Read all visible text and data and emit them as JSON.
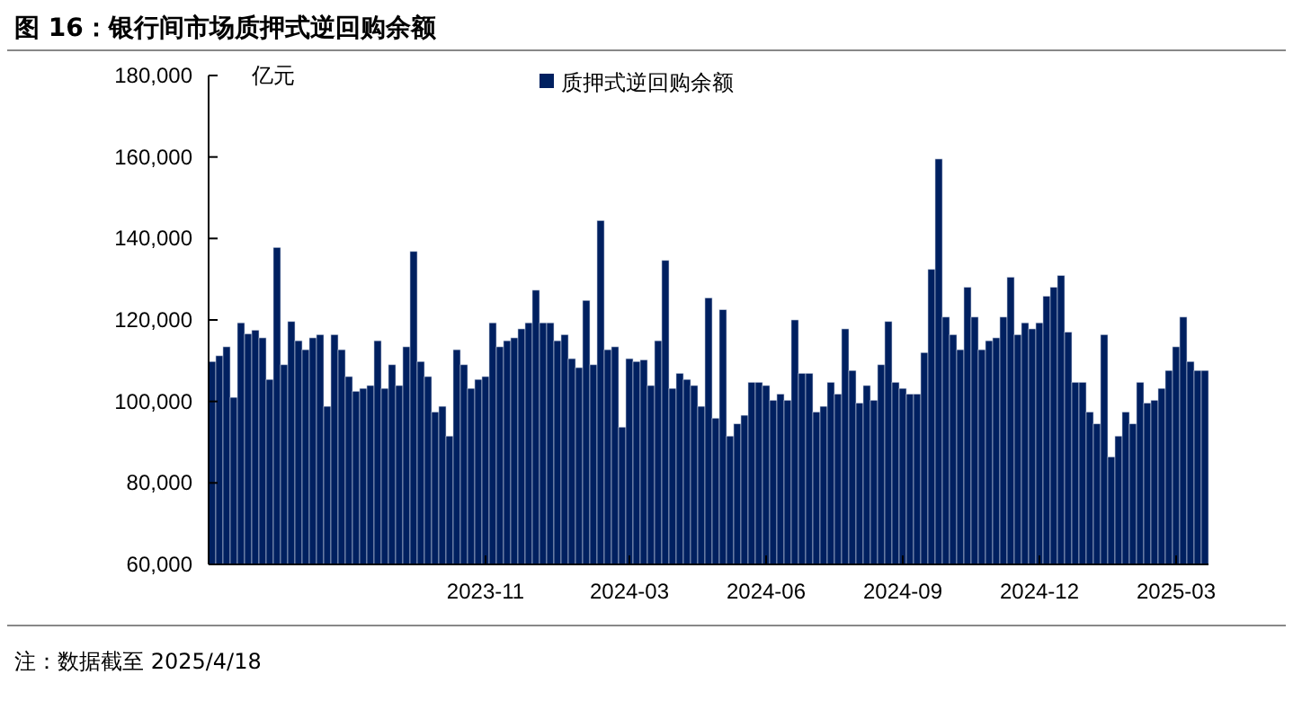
{
  "chart_data": {
    "type": "bar",
    "title": "图 16：银行间市场质押式逆回购余额",
    "ylabel": "亿元",
    "legend": "top",
    "grid": false,
    "annotations": [
      "注：数据截至 2025/4/18"
    ],
    "ylim": [
      60000,
      180000
    ],
    "yticks": [
      {
        "value": 60000,
        "label": "60,000"
      },
      {
        "value": 80000,
        "label": "80,000"
      },
      {
        "value": 100000,
        "label": "100,000"
      },
      {
        "value": 120000,
        "label": "120,000"
      },
      {
        "value": 140000,
        "label": "140,000"
      },
      {
        "value": 160000,
        "label": "160,000"
      },
      {
        "value": 180000,
        "label": "180,000"
      }
    ],
    "categories": [
      null,
      null,
      null,
      null,
      null,
      null,
      null,
      null,
      null,
      null,
      null,
      null,
      null,
      null,
      null,
      null,
      null,
      null,
      null,
      null,
      null,
      null,
      null,
      null,
      null,
      null,
      null,
      null,
      null,
      null,
      null,
      null,
      null,
      null,
      null,
      null,
      null,
      null,
      "2023-11",
      null,
      null,
      null,
      null,
      null,
      null,
      null,
      null,
      null,
      null,
      null,
      null,
      null,
      null,
      null,
      null,
      null,
      null,
      null,
      "2024-03",
      null,
      null,
      null,
      null,
      null,
      null,
      null,
      null,
      null,
      null,
      null,
      null,
      null,
      null,
      null,
      null,
      null,
      null,
      "2024-06",
      null,
      null,
      null,
      null,
      null,
      null,
      null,
      null,
      null,
      null,
      null,
      null,
      null,
      null,
      null,
      null,
      null,
      null,
      "2024-09",
      null,
      null,
      null,
      null,
      null,
      null,
      null,
      null,
      null,
      null,
      null,
      null,
      null,
      null,
      null,
      null,
      null,
      null,
      "2024-12",
      null,
      null,
      null,
      null,
      null,
      null,
      null,
      null,
      null,
      null,
      null,
      null,
      null,
      null,
      null,
      null,
      null,
      null,
      "2025-03",
      null,
      null,
      null,
      null
    ],
    "series": [
      {
        "name": "质押式逆回购余额",
        "color": "#002060",
        "values": [
          109800,
          111200,
          113400,
          101000,
          119300,
          116600,
          117500,
          115600,
          105400,
          137800,
          109000,
          119600,
          114900,
          112700,
          115600,
          116400,
          98800,
          116400,
          112700,
          106100,
          102500,
          103200,
          103900,
          114900,
          103200,
          109000,
          103900,
          113400,
          136800,
          109800,
          106100,
          97400,
          98800,
          91500,
          112700,
          109000,
          103200,
          105400,
          106100,
          119300,
          113400,
          114900,
          115600,
          117800,
          119300,
          127300,
          119300,
          119300,
          114900,
          116400,
          110500,
          108300,
          124800,
          109000,
          144400,
          112700,
          113400,
          93700,
          110500,
          109800,
          110200,
          103900,
          114900,
          134600,
          103200,
          106900,
          105400,
          103900,
          98800,
          125400,
          95900,
          122500,
          91500,
          94500,
          96600,
          104700,
          104700,
          103900,
          100300,
          101800,
          100300,
          120000,
          106900,
          106900,
          97400,
          98800,
          104700,
          101800,
          117800,
          107600,
          99600,
          103900,
          100300,
          109000,
          119600,
          104700,
          103200,
          101800,
          101800,
          112000,
          132400,
          159500,
          120700,
          116400,
          112700,
          128000,
          120700,
          112700,
          114900,
          115600,
          120700,
          130500,
          116400,
          119300,
          117800,
          119300,
          125800,
          128000,
          130900,
          117000,
          104700,
          104700,
          97400,
          94500,
          116400,
          86400,
          91500,
          97400,
          94500,
          104700,
          99600,
          100300,
          103200,
          107600,
          113400,
          120700,
          109800,
          107600,
          107600
        ]
      }
    ]
  }
}
